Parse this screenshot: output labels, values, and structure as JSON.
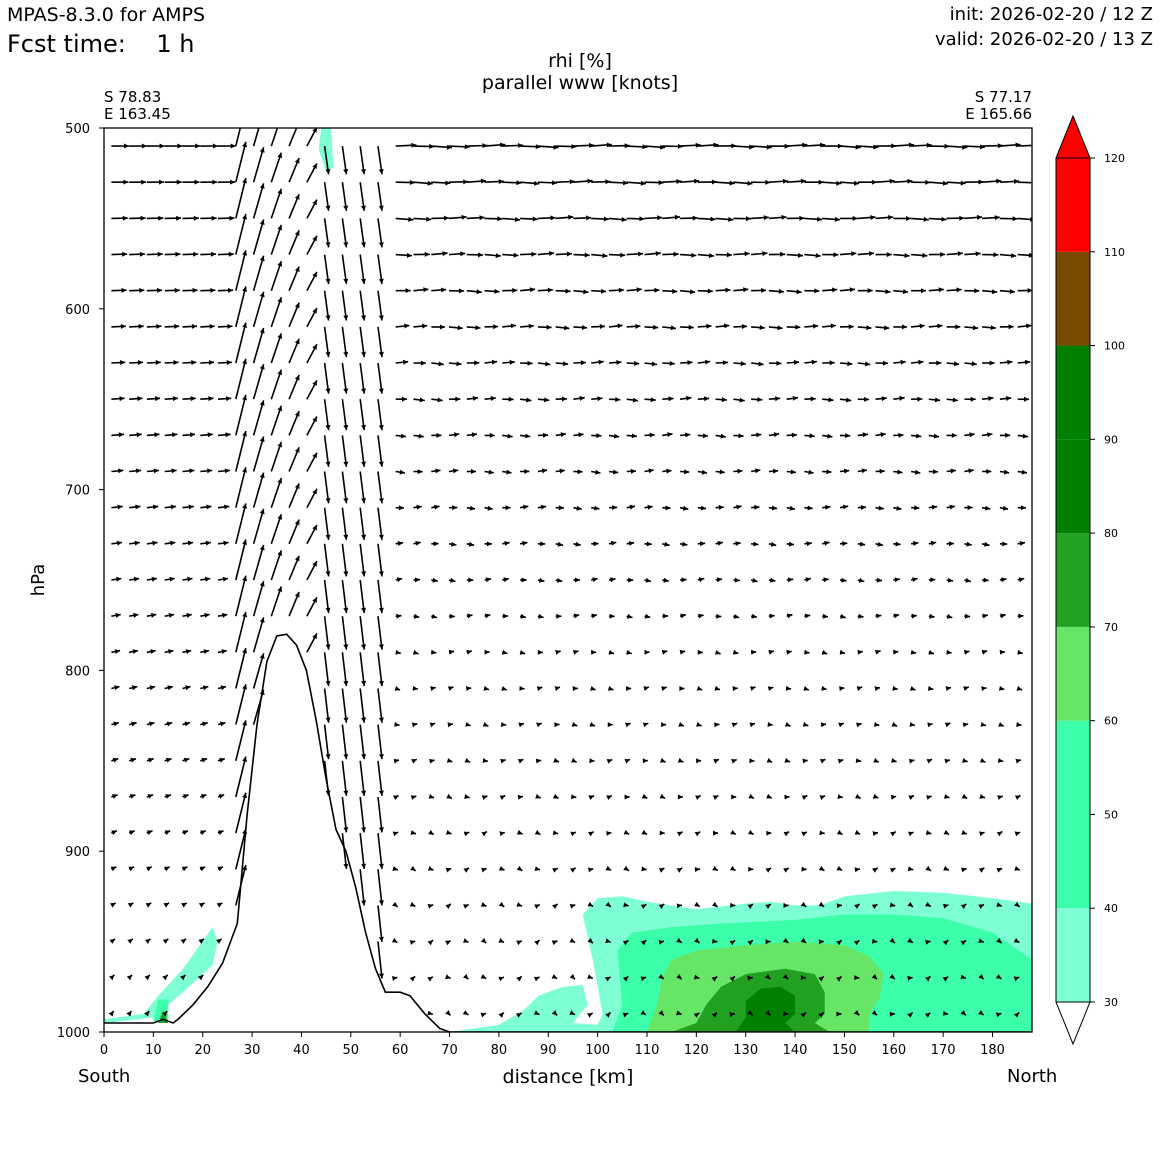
{
  "header": {
    "model": "MPAS-8.3.0 for AMPS",
    "fcst_time": "Fcst time:    1 h",
    "init": "init: 2026-02-20 / 12 Z",
    "valid": "valid: 2026-02-20 / 13 Z"
  },
  "corners": {
    "left_lat": "S 78.83",
    "left_lon": "E 163.45",
    "right_lat": "S 77.17",
    "right_lon": "E 165.66"
  },
  "labels": {
    "south": "South",
    "north": "North"
  },
  "colors": {
    "c40": "#7fffd4",
    "c50": "#3cffaa",
    "c60": "#66e566",
    "c70": "#22a022",
    "c80": "#007f00",
    "c100": "#7a4a00",
    "c110": "#ff0000",
    "arrows": "#000000"
  },
  "chart_data": {
    "type": "heatmap",
    "title": "rhi [%]",
    "subtitle": "parallel www [knots]",
    "xlabel": "distance [km]",
    "ylabel": "hPa",
    "xlim": [
      0,
      188
    ],
    "ylim": [
      1000,
      500
    ],
    "x_ticks": [
      0,
      10,
      20,
      30,
      40,
      50,
      60,
      70,
      80,
      90,
      100,
      110,
      120,
      130,
      140,
      150,
      160,
      170,
      180
    ],
    "y_ticks": [
      500,
      600,
      700,
      800,
      900,
      1000
    ],
    "colorbar": {
      "levels": [
        30,
        40,
        50,
        60,
        70,
        80,
        90,
        100,
        110,
        120
      ],
      "band_colors": [
        "#ffffff",
        "#7fffd4",
        "#3cffaa",
        "#3cffaa",
        "#66e566",
        "#22a022",
        "#007f00",
        "#007f00",
        "#7a4a00",
        "#ff0000"
      ]
    },
    "terrain": [
      [
        0,
        995
      ],
      [
        10,
        995
      ],
      [
        12,
        993
      ],
      [
        14,
        995
      ],
      [
        15,
        993
      ],
      [
        18,
        985
      ],
      [
        21,
        975
      ],
      [
        24,
        962
      ],
      [
        27,
        940
      ],
      [
        29,
        880
      ],
      [
        31,
        830
      ],
      [
        33,
        795
      ],
      [
        35,
        781
      ],
      [
        37,
        780
      ],
      [
        39,
        786
      ],
      [
        41,
        800
      ],
      [
        43,
        828
      ],
      [
        45,
        860
      ],
      [
        47,
        888
      ],
      [
        49,
        900
      ],
      [
        51,
        920
      ],
      [
        53,
        945
      ],
      [
        55,
        965
      ],
      [
        57,
        978
      ],
      [
        60,
        978
      ],
      [
        62,
        980
      ],
      [
        65,
        990
      ],
      [
        68,
        998
      ],
      [
        70,
        1000
      ],
      [
        188,
        1000
      ]
    ],
    "rhi_regions": [
      {
        "level": 40,
        "points": [
          [
            0,
            993
          ],
          [
            8,
            990
          ],
          [
            11,
            980
          ],
          [
            16,
            965
          ],
          [
            22,
            942
          ],
          [
            23,
            950
          ],
          [
            22,
            963
          ],
          [
            16,
            978
          ],
          [
            10,
            992
          ],
          [
            0,
            995
          ]
        ]
      },
      {
        "level": 50,
        "points": [
          [
            10,
            994
          ],
          [
            11,
            982
          ],
          [
            13,
            982
          ],
          [
            13,
            994
          ]
        ]
      },
      {
        "level": 70,
        "points": [
          [
            11,
            995
          ],
          [
            12,
            988
          ],
          [
            13,
            995
          ]
        ]
      },
      {
        "level": 40,
        "points": [
          [
            44,
            500
          ],
          [
            46,
            500
          ],
          [
            46.5,
            522
          ],
          [
            45,
            524
          ],
          [
            43.5,
            512
          ]
        ]
      },
      {
        "level": 40,
        "points": [
          [
            70,
            1000
          ],
          [
            80,
            996
          ],
          [
            85,
            988
          ],
          [
            88,
            980
          ],
          [
            93,
            975
          ],
          [
            97,
            974
          ],
          [
            98,
            985
          ],
          [
            95,
            995
          ],
          [
            100,
            996
          ],
          [
            101,
            990
          ],
          [
            99,
            960
          ],
          [
            97,
            935
          ],
          [
            100,
            926
          ],
          [
            105,
            925
          ],
          [
            110,
            928
          ],
          [
            120,
            932
          ],
          [
            130,
            929
          ],
          [
            135,
            928
          ],
          [
            140,
            930
          ],
          [
            145,
            930
          ],
          [
            150,
            925
          ],
          [
            160,
            922
          ],
          [
            170,
            923
          ],
          [
            180,
            926
          ],
          [
            188,
            929
          ],
          [
            188,
            1000
          ]
        ]
      },
      {
        "level": 50,
        "points": [
          [
            103,
            1000
          ],
          [
            105,
            985
          ],
          [
            104,
            955
          ],
          [
            107,
            945
          ],
          [
            115,
            942
          ],
          [
            125,
            940
          ],
          [
            140,
            938
          ],
          [
            150,
            935
          ],
          [
            160,
            935
          ],
          [
            170,
            937
          ],
          [
            180,
            945
          ],
          [
            188,
            960
          ],
          [
            188,
            1000
          ]
        ]
      },
      {
        "level": 60,
        "points": [
          [
            110,
            1000
          ],
          [
            112,
            985
          ],
          [
            113,
            970
          ],
          [
            115,
            960
          ],
          [
            120,
            955
          ],
          [
            130,
            952
          ],
          [
            140,
            950
          ],
          [
            150,
            952
          ],
          [
            155,
            958
          ],
          [
            158,
            968
          ],
          [
            157,
            982
          ],
          [
            155,
            990
          ],
          [
            155,
            1000
          ]
        ]
      },
      {
        "level": 70,
        "points": [
          [
            115,
            1000
          ],
          [
            120,
            995
          ],
          [
            122,
            985
          ],
          [
            125,
            975
          ],
          [
            130,
            968
          ],
          [
            138,
            965
          ],
          [
            144,
            968
          ],
          [
            146,
            978
          ],
          [
            146,
            990
          ],
          [
            144,
            995
          ],
          [
            147,
            1000
          ]
        ]
      },
      {
        "level": 80,
        "points": [
          [
            128,
            1000
          ],
          [
            130,
            992
          ],
          [
            130,
            983
          ],
          [
            133,
            976
          ],
          [
            137,
            975
          ],
          [
            140,
            980
          ],
          [
            140,
            990
          ],
          [
            138,
            995
          ],
          [
            140,
            1000
          ]
        ]
      }
    ]
  }
}
